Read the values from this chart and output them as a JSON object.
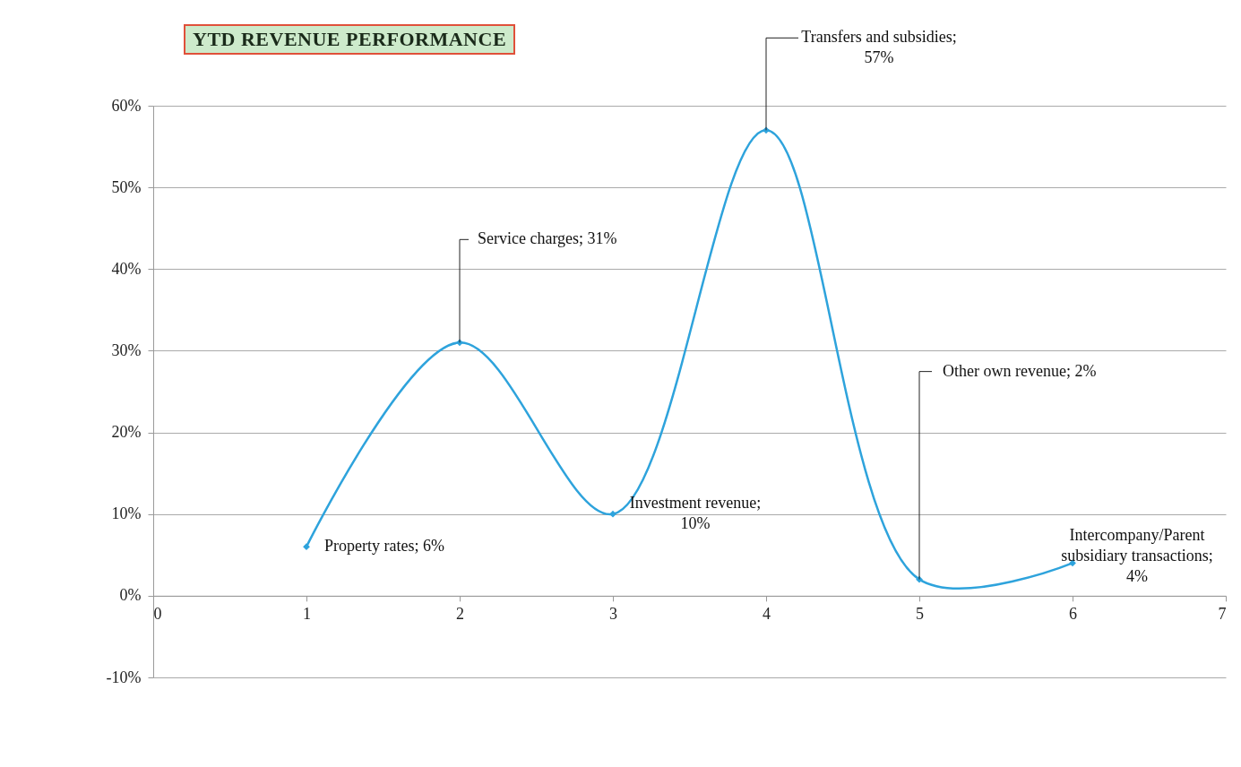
{
  "chart_data": {
    "type": "line",
    "title": "YTD REVENUE PERFORMANCE",
    "x": [
      1,
      2,
      3,
      4,
      5,
      6
    ],
    "series": [
      {
        "color": "#2ea3dc",
        "values": [
          6,
          31,
          10,
          57,
          2,
          4
        ]
      }
    ],
    "xlim": [
      0,
      7
    ],
    "xticks": [
      0,
      1,
      2,
      3,
      4,
      5,
      6,
      7
    ],
    "ylim": [
      -10,
      60
    ],
    "yticks": [
      {
        "value": -10,
        "label": "-10%"
      },
      {
        "value": 0,
        "label": "0%"
      },
      {
        "value": 10,
        "label": "10%"
      },
      {
        "value": 20,
        "label": "20%"
      },
      {
        "value": 30,
        "label": "30%"
      },
      {
        "value": 40,
        "label": "40%"
      },
      {
        "value": 50,
        "label": "50%"
      },
      {
        "value": 60,
        "label": "60%"
      }
    ],
    "grid": "y",
    "marker": "diamond",
    "line_style": "solid",
    "annotations": [
      {
        "text": "Property rates; 6%",
        "x": 1,
        "y": 6
      },
      {
        "text": "Service charges; 31%",
        "x": 2,
        "y": 31
      },
      {
        "text": "Investment revenue; 10%",
        "x": 3,
        "y": 10
      },
      {
        "text": "Transfers and subsidies; 57%",
        "x": 4,
        "y": 57
      },
      {
        "text": "Other own revenue; 2%",
        "x": 5,
        "y": 2
      },
      {
        "text": "Intercompany/Parent subsidiary transactions; 4%",
        "x": 6,
        "y": 4
      }
    ]
  }
}
